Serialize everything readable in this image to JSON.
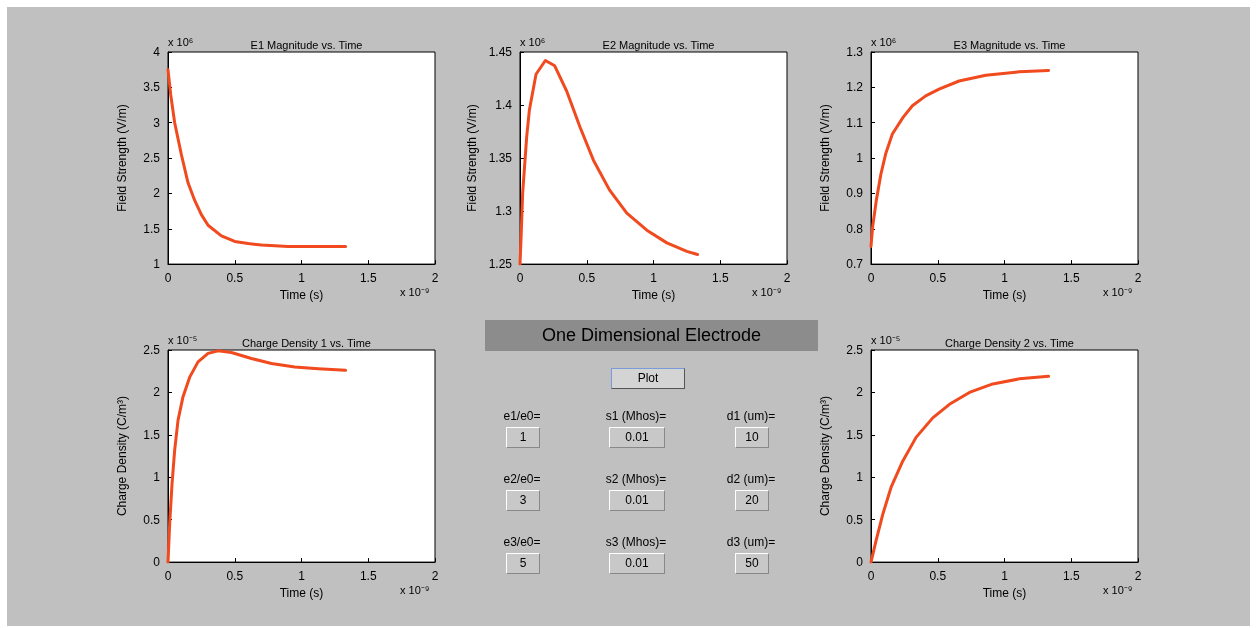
{
  "chart_data": [
    {
      "type": "line",
      "title": "E1 Magnitude vs. Time",
      "xlabel": "Time (s)",
      "ylabel": "Field Strength (V/m)",
      "annotations": [
        "x 10⁶",
        "x 10⁻⁹"
      ],
      "xlim": [
        0,
        2
      ],
      "xticks": [
        0,
        0.5,
        1,
        1.5,
        2
      ],
      "ylim": [
        1,
        4
      ],
      "yticks": [
        1,
        1.5,
        2,
        2.5,
        3,
        3.5,
        4
      ],
      "x": [
        0,
        0.02,
        0.05,
        0.1,
        0.15,
        0.2,
        0.25,
        0.3,
        0.4,
        0.5,
        0.6,
        0.7,
        0.8,
        0.9,
        1.0,
        1.2,
        1.33
      ],
      "series": [
        {
          "color": "#f04a1e",
          "values": [
            3.75,
            3.4,
            3.0,
            2.55,
            2.15,
            1.9,
            1.7,
            1.55,
            1.4,
            1.32,
            1.29,
            1.27,
            1.26,
            1.25,
            1.25,
            1.25,
            1.25
          ]
        }
      ]
    },
    {
      "type": "line",
      "title": "E2 Magnitude vs. Time",
      "xlabel": "Time (s)",
      "ylabel": "Field Strength (V/m)",
      "annotations": [
        "x 10⁶",
        "x 10⁻⁹"
      ],
      "xlim": [
        0,
        2
      ],
      "xticks": [
        0,
        0.5,
        1,
        1.5,
        2
      ],
      "ylim": [
        1.25,
        1.45
      ],
      "yticks": [
        1.25,
        1.3,
        1.35,
        1.4,
        1.45
      ],
      "x": [
        0,
        0.0075,
        0.02,
        0.05,
        0.07,
        0.12,
        0.19,
        0.26,
        0.35,
        0.45,
        0.55,
        0.67,
        0.8,
        0.95,
        1.1,
        1.25,
        1.33
      ],
      "series": [
        {
          "color": "#f04a1e",
          "values": [
            1.25,
            1.273,
            1.317,
            1.37,
            1.395,
            1.429,
            1.442,
            1.437,
            1.413,
            1.379,
            1.348,
            1.32,
            1.298,
            1.282,
            1.27,
            1.262,
            1.259
          ]
        }
      ]
    },
    {
      "type": "line",
      "title": "E3 Magnitude vs. Time",
      "xlabel": "Time (s)",
      "ylabel": "Field Strength (V/m)",
      "annotations": [
        "x 10⁶",
        "x 10⁻⁹"
      ],
      "xlim": [
        0,
        2
      ],
      "xticks": [
        0,
        0.5,
        1,
        1.5,
        2
      ],
      "ylim": [
        0.7,
        1.3
      ],
      "yticks": [
        0.7,
        0.8,
        0.9,
        1,
        1.1,
        1.2,
        1.3
      ],
      "x": [
        0,
        0.0125,
        0.04,
        0.075,
        0.11,
        0.16,
        0.24,
        0.31,
        0.41,
        0.51,
        0.66,
        0.86,
        1.11,
        1.33
      ],
      "series": [
        {
          "color": "#f04a1e",
          "values": [
            0.75,
            0.806,
            0.881,
            0.956,
            1.012,
            1.068,
            1.115,
            1.148,
            1.176,
            1.195,
            1.218,
            1.234,
            1.244,
            1.248
          ]
        }
      ]
    },
    {
      "type": "line",
      "title": "Charge Density 1 vs. Time",
      "xlabel": "Time (s)",
      "ylabel": "Charge Density (C/m³)",
      "annotations": [
        "x 10⁻⁵",
        "x 10⁻⁹"
      ],
      "xlim": [
        0,
        2
      ],
      "xticks": [
        0,
        0.5,
        1,
        1.5,
        2
      ],
      "ylim": [
        0,
        2.5
      ],
      "yticks": [
        0,
        0.5,
        1,
        1.5,
        2,
        2.5
      ],
      "x": [
        0,
        0.0125,
        0.03,
        0.05,
        0.075,
        0.1125,
        0.1625,
        0.225,
        0.3,
        0.375,
        0.475,
        0.625,
        0.775,
        0.95,
        1.125,
        1.33
      ],
      "series": [
        {
          "color": "#f04a1e",
          "values": [
            0,
            0.45,
            0.92,
            1.32,
            1.67,
            1.95,
            2.18,
            2.36,
            2.46,
            2.49,
            2.47,
            2.4,
            2.34,
            2.3,
            2.28,
            2.26
          ]
        }
      ]
    },
    {
      "type": "other",
      "title": "One Dimensional Electrode",
      "annotations": [
        "Plot",
        "e1/e0=",
        "s1 (Mhos)=",
        "d1 (um)=",
        "1",
        "0.01",
        "10",
        "e2/e0=",
        "s2 (Mhos)=",
        "d2 (um)=",
        "3",
        "0.01",
        "20",
        "e3/e0=",
        "s3 (Mhos)=",
        "d3 (um)=",
        "5",
        "0.01",
        "50"
      ]
    },
    {
      "type": "line",
      "title": "Charge Density 2 vs. Time",
      "xlabel": "Time (s)",
      "ylabel": "Charge Density (C/m³)",
      "annotations": [
        "x 10⁻⁵",
        "x 10⁻⁹"
      ],
      "xlim": [
        0,
        2
      ],
      "xticks": [
        0,
        0.5,
        1,
        1.5,
        2
      ],
      "ylim": [
        0,
        2.5
      ],
      "yticks": [
        0,
        0.5,
        1,
        1.5,
        2,
        2.5
      ],
      "x": [
        0,
        0.0375,
        0.0875,
        0.15,
        0.2375,
        0.3375,
        0.4625,
        0.5875,
        0.7375,
        0.9125,
        1.1125,
        1.33
      ],
      "series": [
        {
          "color": "#f04a1e",
          "values": [
            0,
            0.25,
            0.56,
            0.88,
            1.19,
            1.47,
            1.7,
            1.86,
            2.0,
            2.1,
            2.16,
            2.19
          ]
        }
      ]
    }
  ]
}
